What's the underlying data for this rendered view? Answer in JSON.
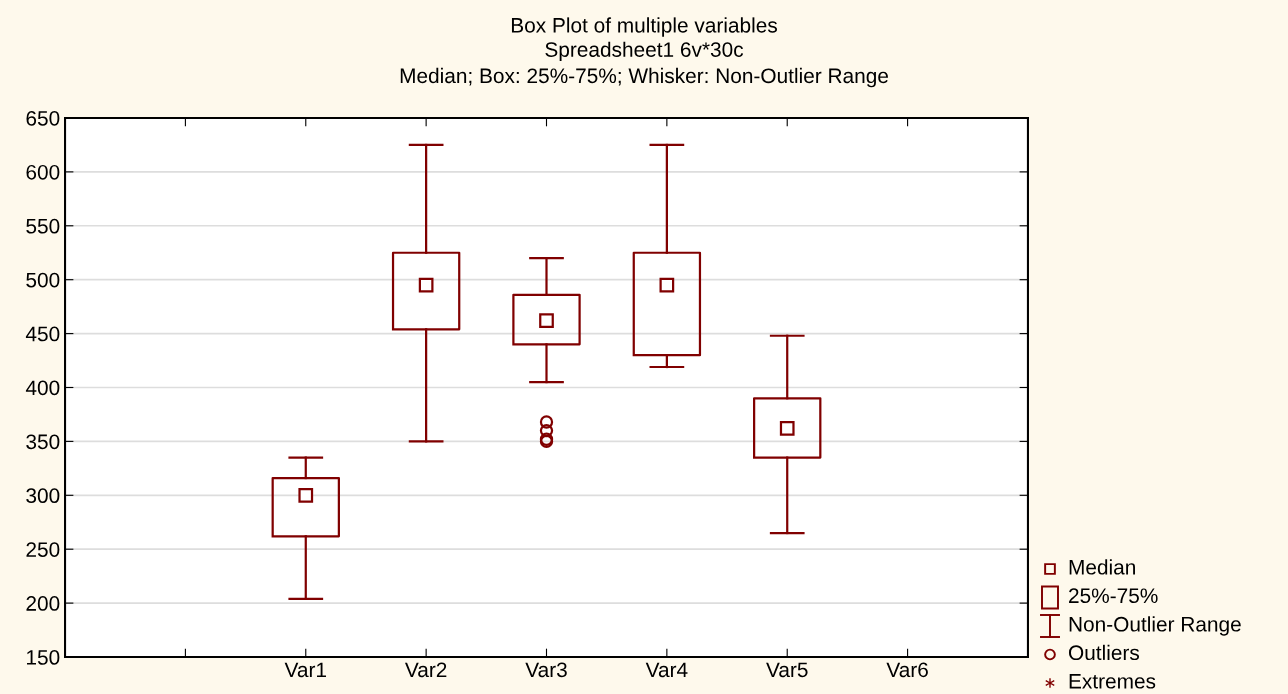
{
  "chart_data": {
    "type": "box",
    "title": "Box Plot of multiple variables",
    "subtitle": "Spreadsheet1 6v*30c\nMedian; Box: 25%-75%; Whisker: Non-Outlier Range",
    "categories": [
      null,
      "Var1",
      "Var2",
      "Var3",
      "Var4",
      "Var5",
      "Var6"
    ],
    "series": [
      {
        "color": "#800000",
        "boxes": [
          null,
          {
            "low": 204,
            "q1": 262,
            "median": 300,
            "q3": 316,
            "high": 335
          },
          {
            "low": 350,
            "q1": 454,
            "median": 495,
            "q3": 525,
            "high": 625
          },
          {
            "low": 405,
            "q1": 440,
            "median": 462,
            "q3": 486,
            "high": 520,
            "outliers": [
              368,
              360,
              352,
              350
            ]
          },
          {
            "low": 419,
            "q1": 430,
            "median": 495,
            "q3": 525,
            "high": 625
          },
          {
            "low": 265,
            "q1": 335,
            "median": 362,
            "q3": 390,
            "high": 448
          },
          null
        ]
      }
    ],
    "ylim": [
      150,
      650
    ],
    "yticks": [
      150,
      200,
      250,
      300,
      350,
      400,
      450,
      500,
      550,
      600,
      650
    ],
    "grid": "y",
    "marker": "square",
    "annotations": [
      "Median",
      "25%-75%",
      "Non-Outlier Range",
      "Outliers",
      "Extremes"
    ]
  }
}
